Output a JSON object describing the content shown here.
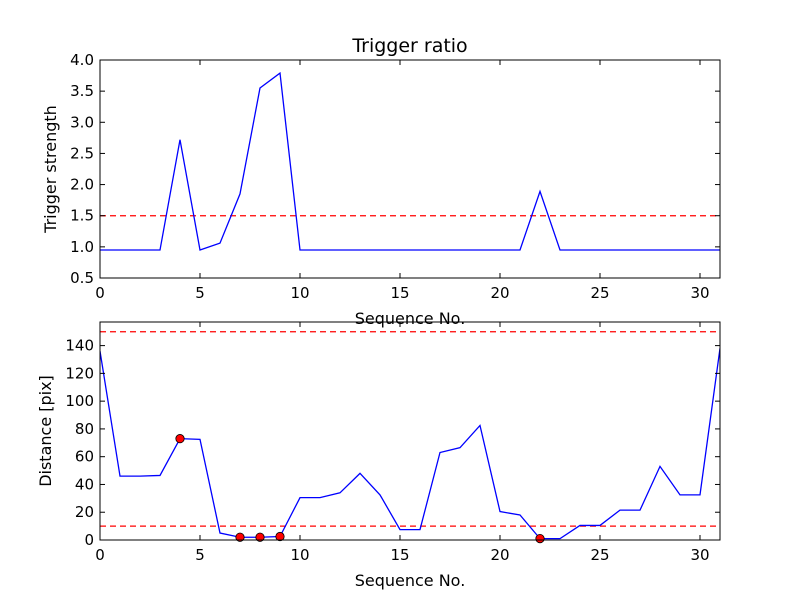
{
  "chart_data": [
    {
      "type": "line",
      "title": "Trigger ratio",
      "xlabel": "Sequence No.",
      "ylabel": "Trigger strength",
      "xlim": [
        0,
        31
      ],
      "ylim": [
        0.5,
        4.0
      ],
      "xticks": [
        0,
        5,
        10,
        15,
        20,
        25,
        30
      ],
      "yticks": [
        0.5,
        1.0,
        1.5,
        2.0,
        2.5,
        3.0,
        3.5,
        4.0
      ],
      "grid": false,
      "series": [
        {
          "color": "#0000ff",
          "x": [
            0,
            1,
            2,
            3,
            4,
            5,
            6,
            7,
            8,
            9,
            10,
            11,
            12,
            13,
            14,
            15,
            16,
            17,
            18,
            19,
            20,
            21,
            22,
            23,
            24,
            25,
            26,
            27,
            28,
            29,
            30,
            31
          ],
          "values": [
            0.95,
            0.95,
            0.95,
            0.95,
            2.72,
            0.95,
            1.06,
            1.85,
            3.55,
            3.79,
            0.95,
            0.95,
            0.95,
            0.95,
            0.95,
            0.95,
            0.95,
            0.95,
            0.95,
            0.95,
            0.95,
            0.95,
            1.89,
            0.95,
            0.95,
            0.95,
            0.95,
            0.95,
            0.95,
            0.95,
            0.95,
            0.95
          ]
        }
      ],
      "hlines": [
        {
          "y": 1.5,
          "color": "#ff0000",
          "style": "dashed"
        }
      ]
    },
    {
      "type": "line",
      "title": "",
      "xlabel": "Sequence No.",
      "ylabel": "Distance [pix]",
      "xlim": [
        0,
        31
      ],
      "ylim": [
        0,
        157
      ],
      "xticks": [
        0,
        5,
        10,
        15,
        20,
        25,
        30
      ],
      "yticks": [
        0,
        20,
        40,
        60,
        80,
        100,
        120,
        140
      ],
      "grid": false,
      "series": [
        {
          "color": "#0000ff",
          "x": [
            0,
            1,
            2,
            3,
            4,
            5,
            6,
            7,
            8,
            9,
            10,
            11,
            12,
            13,
            14,
            15,
            16,
            17,
            18,
            19,
            20,
            21,
            22,
            23,
            24,
            25,
            26,
            27,
            28,
            29,
            30,
            31
          ],
          "values": [
            136,
            46,
            46,
            46.5,
            73,
            72.5,
            5,
            2,
            2,
            2.5,
            30.5,
            30.5,
            34,
            48,
            32.5,
            7.5,
            7.5,
            63,
            66.5,
            82.5,
            20.5,
            18,
            1,
            1,
            10.5,
            10.5,
            21.5,
            21.5,
            53,
            32.5,
            32.5,
            138
          ]
        }
      ],
      "markers": {
        "color": "#ff0000",
        "points": [
          {
            "x": 4,
            "y": 73
          },
          {
            "x": 7,
            "y": 2
          },
          {
            "x": 8,
            "y": 2
          },
          {
            "x": 9,
            "y": 2.5
          },
          {
            "x": 22,
            "y": 1
          }
        ]
      },
      "hlines": [
        {
          "y": 150,
          "color": "#ff0000",
          "style": "dashed"
        },
        {
          "y": 10,
          "color": "#ff0000",
          "style": "dashed"
        }
      ]
    }
  ]
}
